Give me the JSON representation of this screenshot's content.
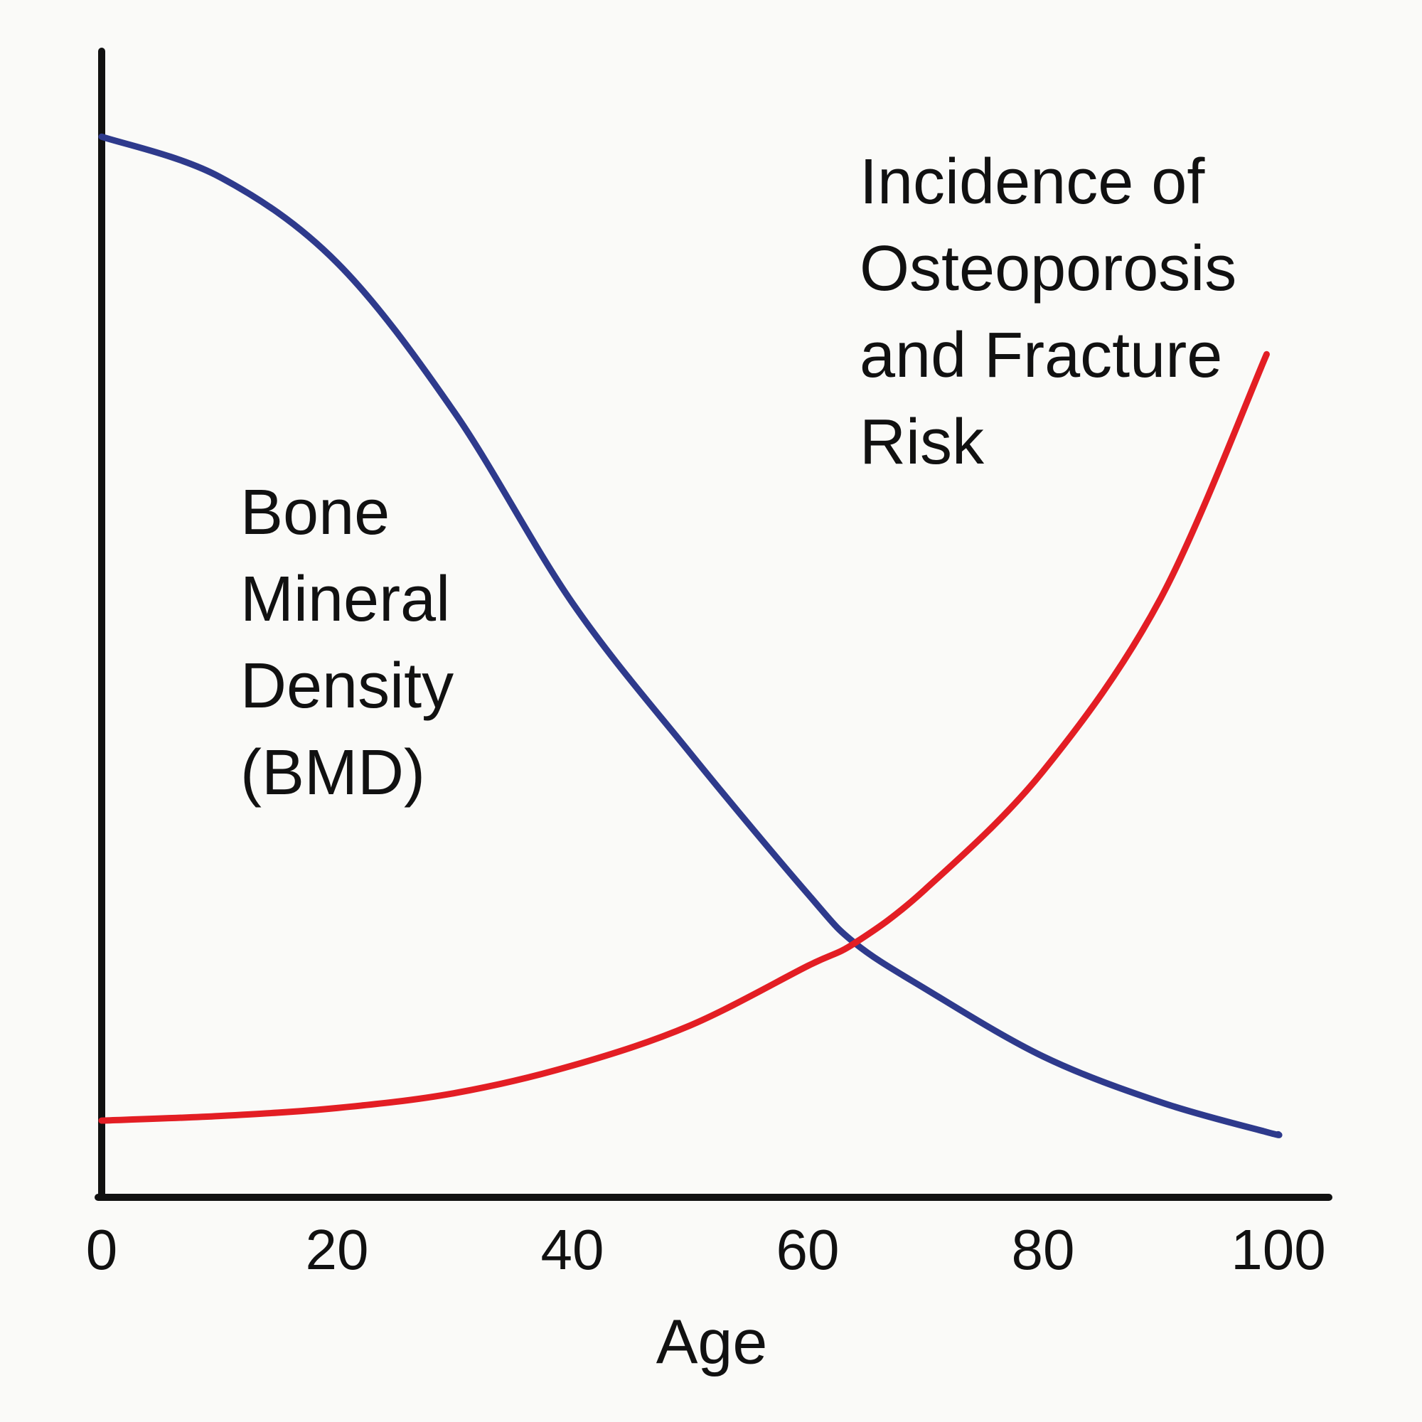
{
  "chart_data": {
    "type": "line",
    "xlabel": "Age",
    "x": [
      0,
      10,
      20,
      30,
      40,
      50,
      60,
      64,
      70,
      80,
      90,
      99,
      100
    ],
    "series": [
      {
        "name": "Bone Mineral Density (BMD)",
        "color": "#2e3a8c",
        "values": [
          92.6,
          89.1,
          81.6,
          68.5,
          51.9,
          38.8,
          26.5,
          22.2,
          18.2,
          12.3,
          8.3,
          5.7,
          5.5
        ]
      },
      {
        "name": "Incidence of Osteoporosis and Fracture Risk",
        "color": "#e31e24",
        "values": [
          6.7,
          7.1,
          7.8,
          9.1,
          11.5,
          15.0,
          20.2,
          22.2,
          26.9,
          37.2,
          52.3,
          73.6,
          null
        ]
      }
    ],
    "xlim": [
      0,
      100
    ],
    "xticks": [
      0,
      20,
      40,
      60,
      80,
      100
    ],
    "ylim": [
      0,
      100
    ]
  }
}
